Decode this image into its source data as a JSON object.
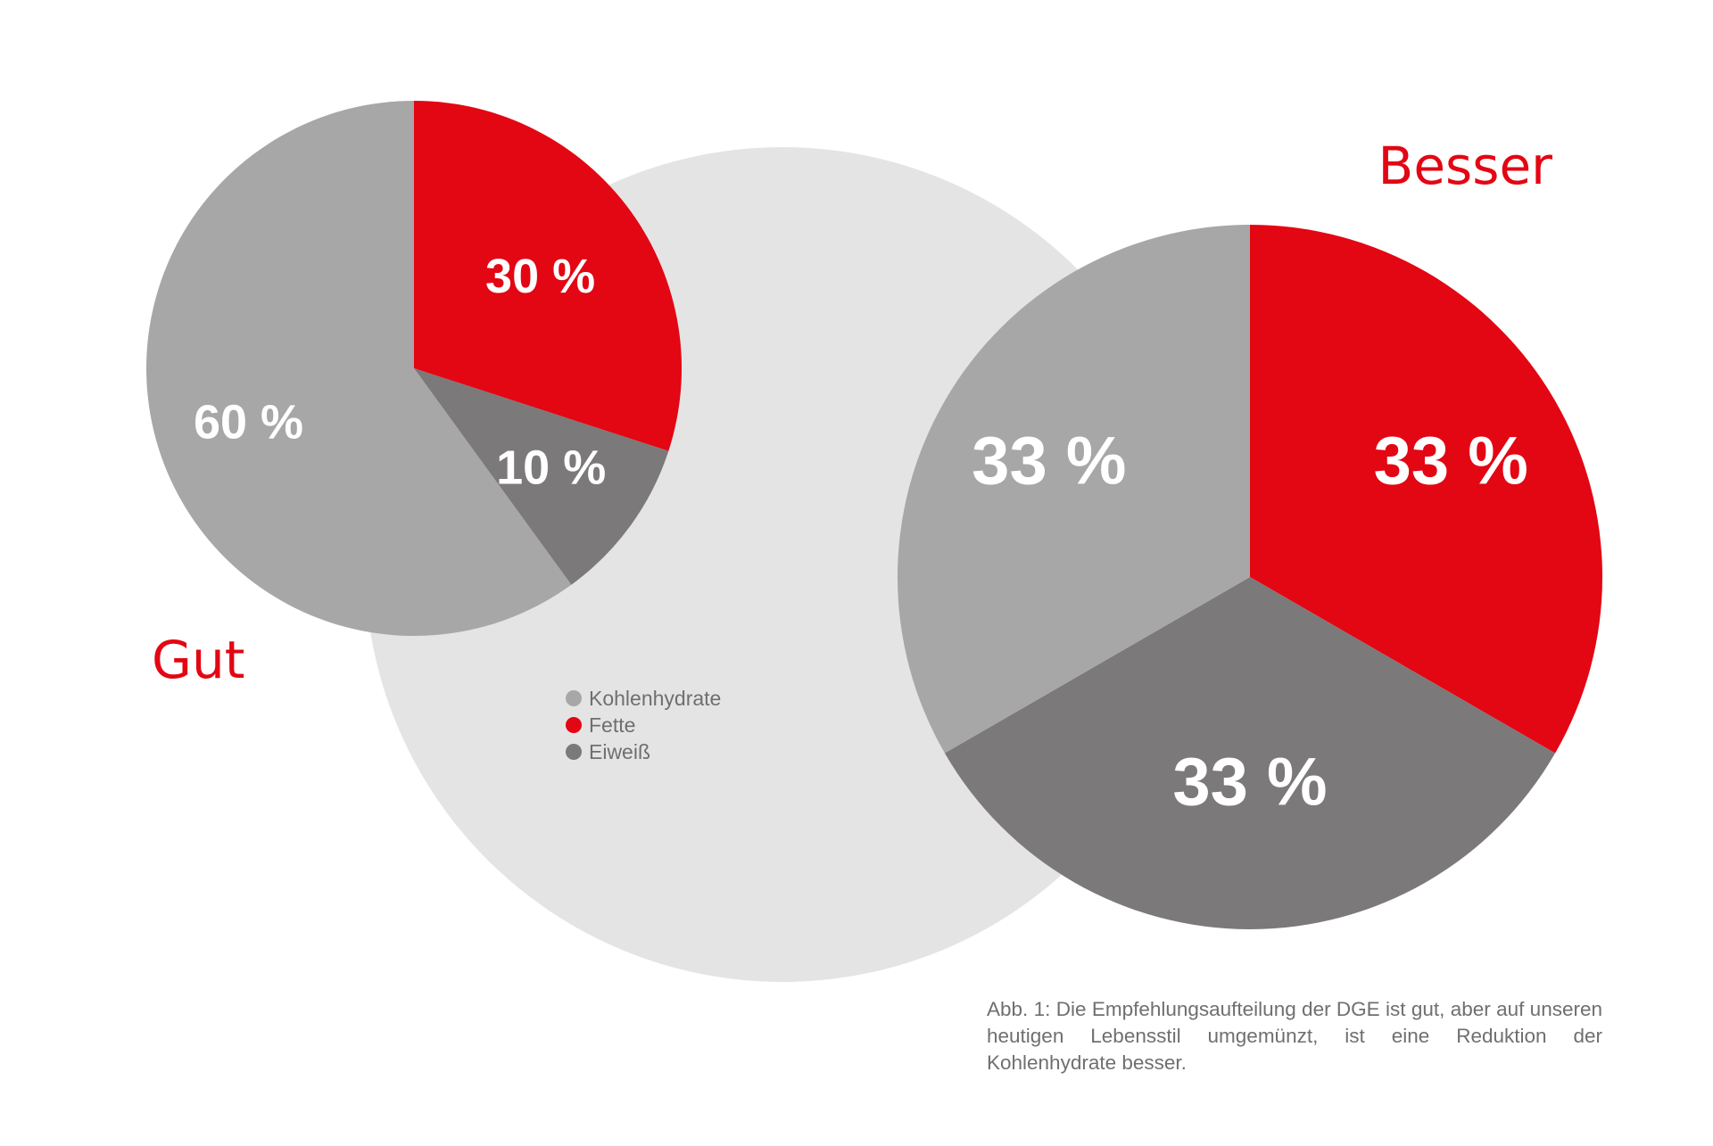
{
  "colors": {
    "kohlenhydrate": "#a8a7a7",
    "fette": "#e30613",
    "eiweiss": "#7b797a",
    "background_circle": "#e5e4e5",
    "title": "#e30613",
    "caption": "#706f6f"
  },
  "chart_data": [
    {
      "type": "pie",
      "title": "Gut",
      "series": [
        {
          "name": "Fette",
          "value": 30,
          "label": "30 %"
        },
        {
          "name": "Eiweiß",
          "value": 10,
          "label": "10 %"
        },
        {
          "name": "Kohlenhydrate",
          "value": 60,
          "label": "60 %"
        }
      ]
    },
    {
      "type": "pie",
      "title": "Besser",
      "series": [
        {
          "name": "Fette",
          "value": 33.33,
          "label": "33 %"
        },
        {
          "name": "Eiweiß",
          "value": 33.33,
          "label": "33 %"
        },
        {
          "name": "Kohlenhydrate",
          "value": 33.33,
          "label": "33 %"
        }
      ]
    }
  ],
  "legend": {
    "items": [
      {
        "label": "Kohlenhydrate",
        "key": "kohlenhydrate"
      },
      {
        "label": "Fette",
        "key": "fette"
      },
      {
        "label": "Eiweiß",
        "key": "eiweiss"
      }
    ],
    "placement": "center"
  },
  "caption": "Abb. 1: Die Empfehlungsaufteilung der DGE ist gut, aber auf unseren heutigen Lebensstil umgemünzt, ist eine Reduktion der Kohlenhydrate besser."
}
